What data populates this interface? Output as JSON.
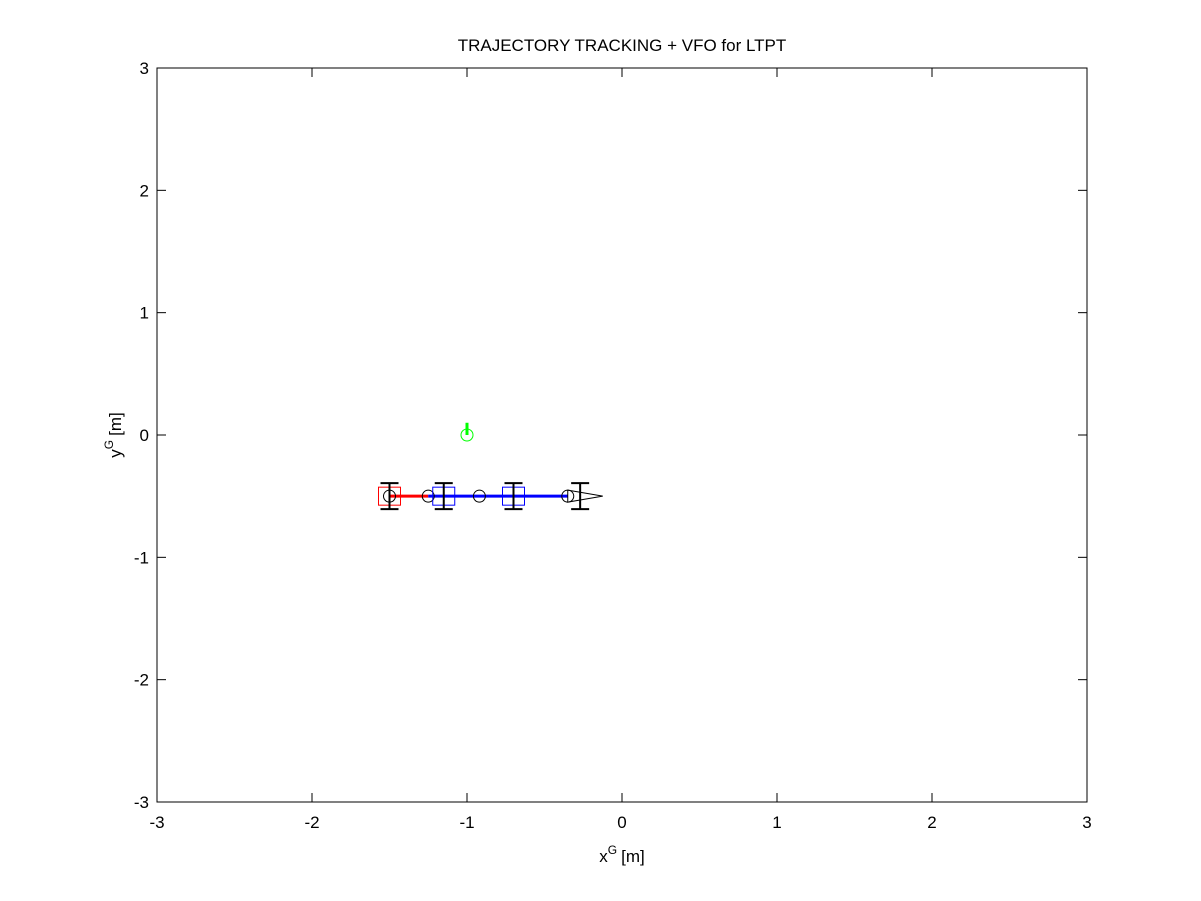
{
  "chart_data": {
    "type": "line",
    "title": "TRAJECTORY TRACKING + VFO for LTPT",
    "x_label": "x",
    "x_label_sup": "G",
    "x_label_unit": "[m]",
    "y_label": "y",
    "y_label_sup": "G",
    "y_label_unit": "[m]",
    "xlim": [
      -3,
      3
    ],
    "ylim": [
      -3,
      3
    ],
    "xticks": [
      -3,
      -2,
      -1,
      0,
      1,
      2,
      3
    ],
    "yticks": [
      -3,
      -2,
      -1,
      0,
      1,
      2,
      3
    ],
    "grid": false,
    "series": [
      {
        "color": "#ff0000",
        "x": [
          -1.5,
          -1.25
        ],
        "values": [
          -0.5,
          -0.5
        ]
      },
      {
        "color": "#0000ff",
        "x": [
          -1.25,
          -0.92,
          -0.35
        ],
        "values": [
          -0.5,
          -0.5,
          -0.5
        ]
      },
      {
        "color": "#00ff00",
        "x": [
          -1,
          -1
        ],
        "values": [
          0,
          0.1
        ]
      }
    ],
    "markers": [
      {
        "marker": "circle",
        "color": "#000000",
        "x": [
          -1.5,
          -1.25,
          -0.92,
          -0.35
        ],
        "values": [
          -0.5,
          -0.5,
          -0.5,
          -0.5
        ]
      },
      {
        "marker": "square",
        "color": "#ff0000",
        "x": [
          -1.5
        ],
        "values": [
          -0.5
        ]
      },
      {
        "marker": "square",
        "color": "#0000ff",
        "x": [
          -1.15,
          -0.7
        ],
        "values": [
          -0.5,
          -0.5
        ]
      },
      {
        "marker": "axle",
        "color": "#000000",
        "x": [
          -1.5,
          -1.15,
          -0.7,
          -0.27
        ],
        "values": [
          -0.5,
          -0.5,
          -0.5,
          -0.5
        ]
      },
      {
        "marker": "circle",
        "color": "#00ff00",
        "x": [
          -1
        ],
        "values": [
          0
        ]
      }
    ]
  }
}
